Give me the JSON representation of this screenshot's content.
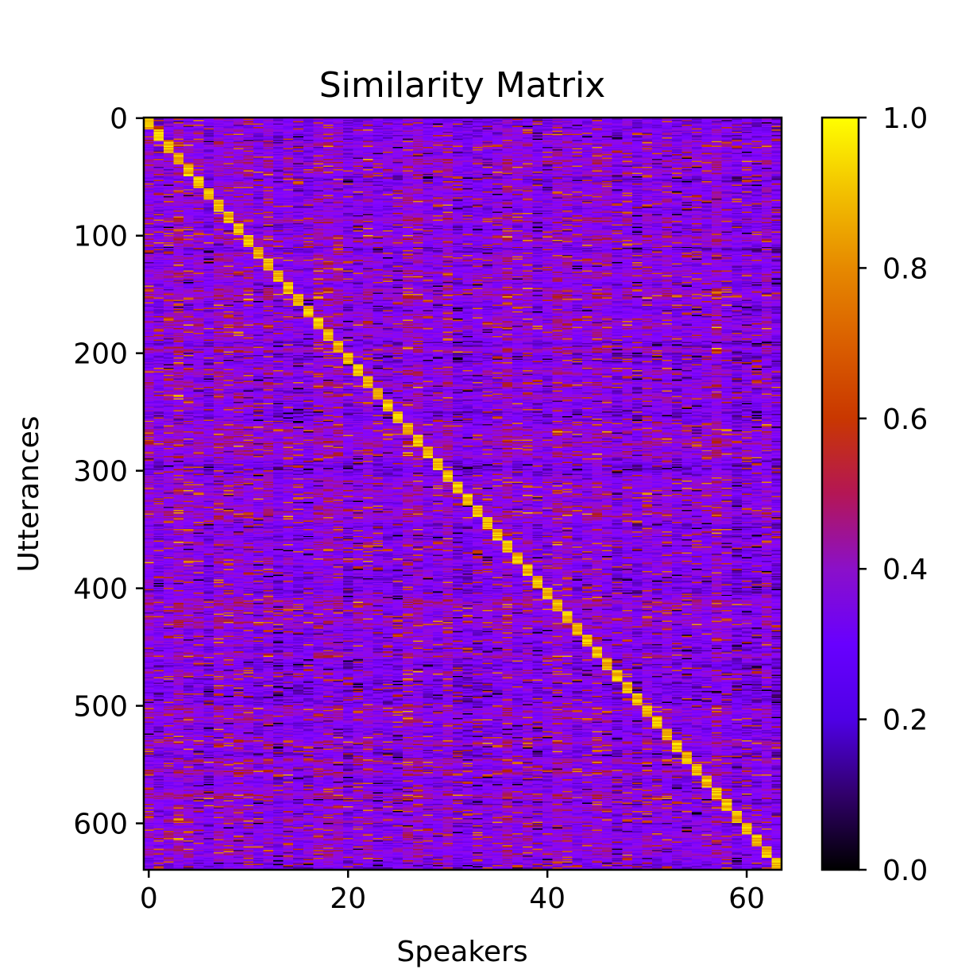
{
  "chart_data": {
    "type": "heatmap",
    "title": "Similarity Matrix",
    "xlabel": "Speakers",
    "ylabel": "Utterances",
    "n_speakers": 64,
    "n_utterances": 640,
    "utterances_per_speaker": 10,
    "xlim": [
      -0.5,
      63.5
    ],
    "ylim": [
      639.5,
      -0.5
    ],
    "x_ticks": [
      0,
      20,
      40,
      60
    ],
    "x_tick_labels": [
      "0",
      "20",
      "40",
      "60"
    ],
    "y_ticks": [
      0,
      100,
      200,
      300,
      400,
      500,
      600
    ],
    "y_tick_labels": [
      "0",
      "100",
      "200",
      "300",
      "400",
      "500",
      "600"
    ],
    "colormap": "gnuplot",
    "value_range": [
      0.0,
      1.0
    ],
    "colorbar": {
      "ticks": [
        0.0,
        0.2,
        0.4,
        0.6,
        0.8,
        1.0
      ],
      "tick_labels": [
        "0.0",
        "0.2",
        "0.4",
        "0.6",
        "0.8",
        "1.0"
      ]
    },
    "pattern": {
      "diagonal_value_range": [
        0.8,
        1.0
      ],
      "off_diagonal_typical": 0.28,
      "off_diagonal_range": [
        0.0,
        0.75
      ],
      "description_of_structure": "utterance i belongs to speaker floor(i/10); diagonal blocks high"
    }
  }
}
